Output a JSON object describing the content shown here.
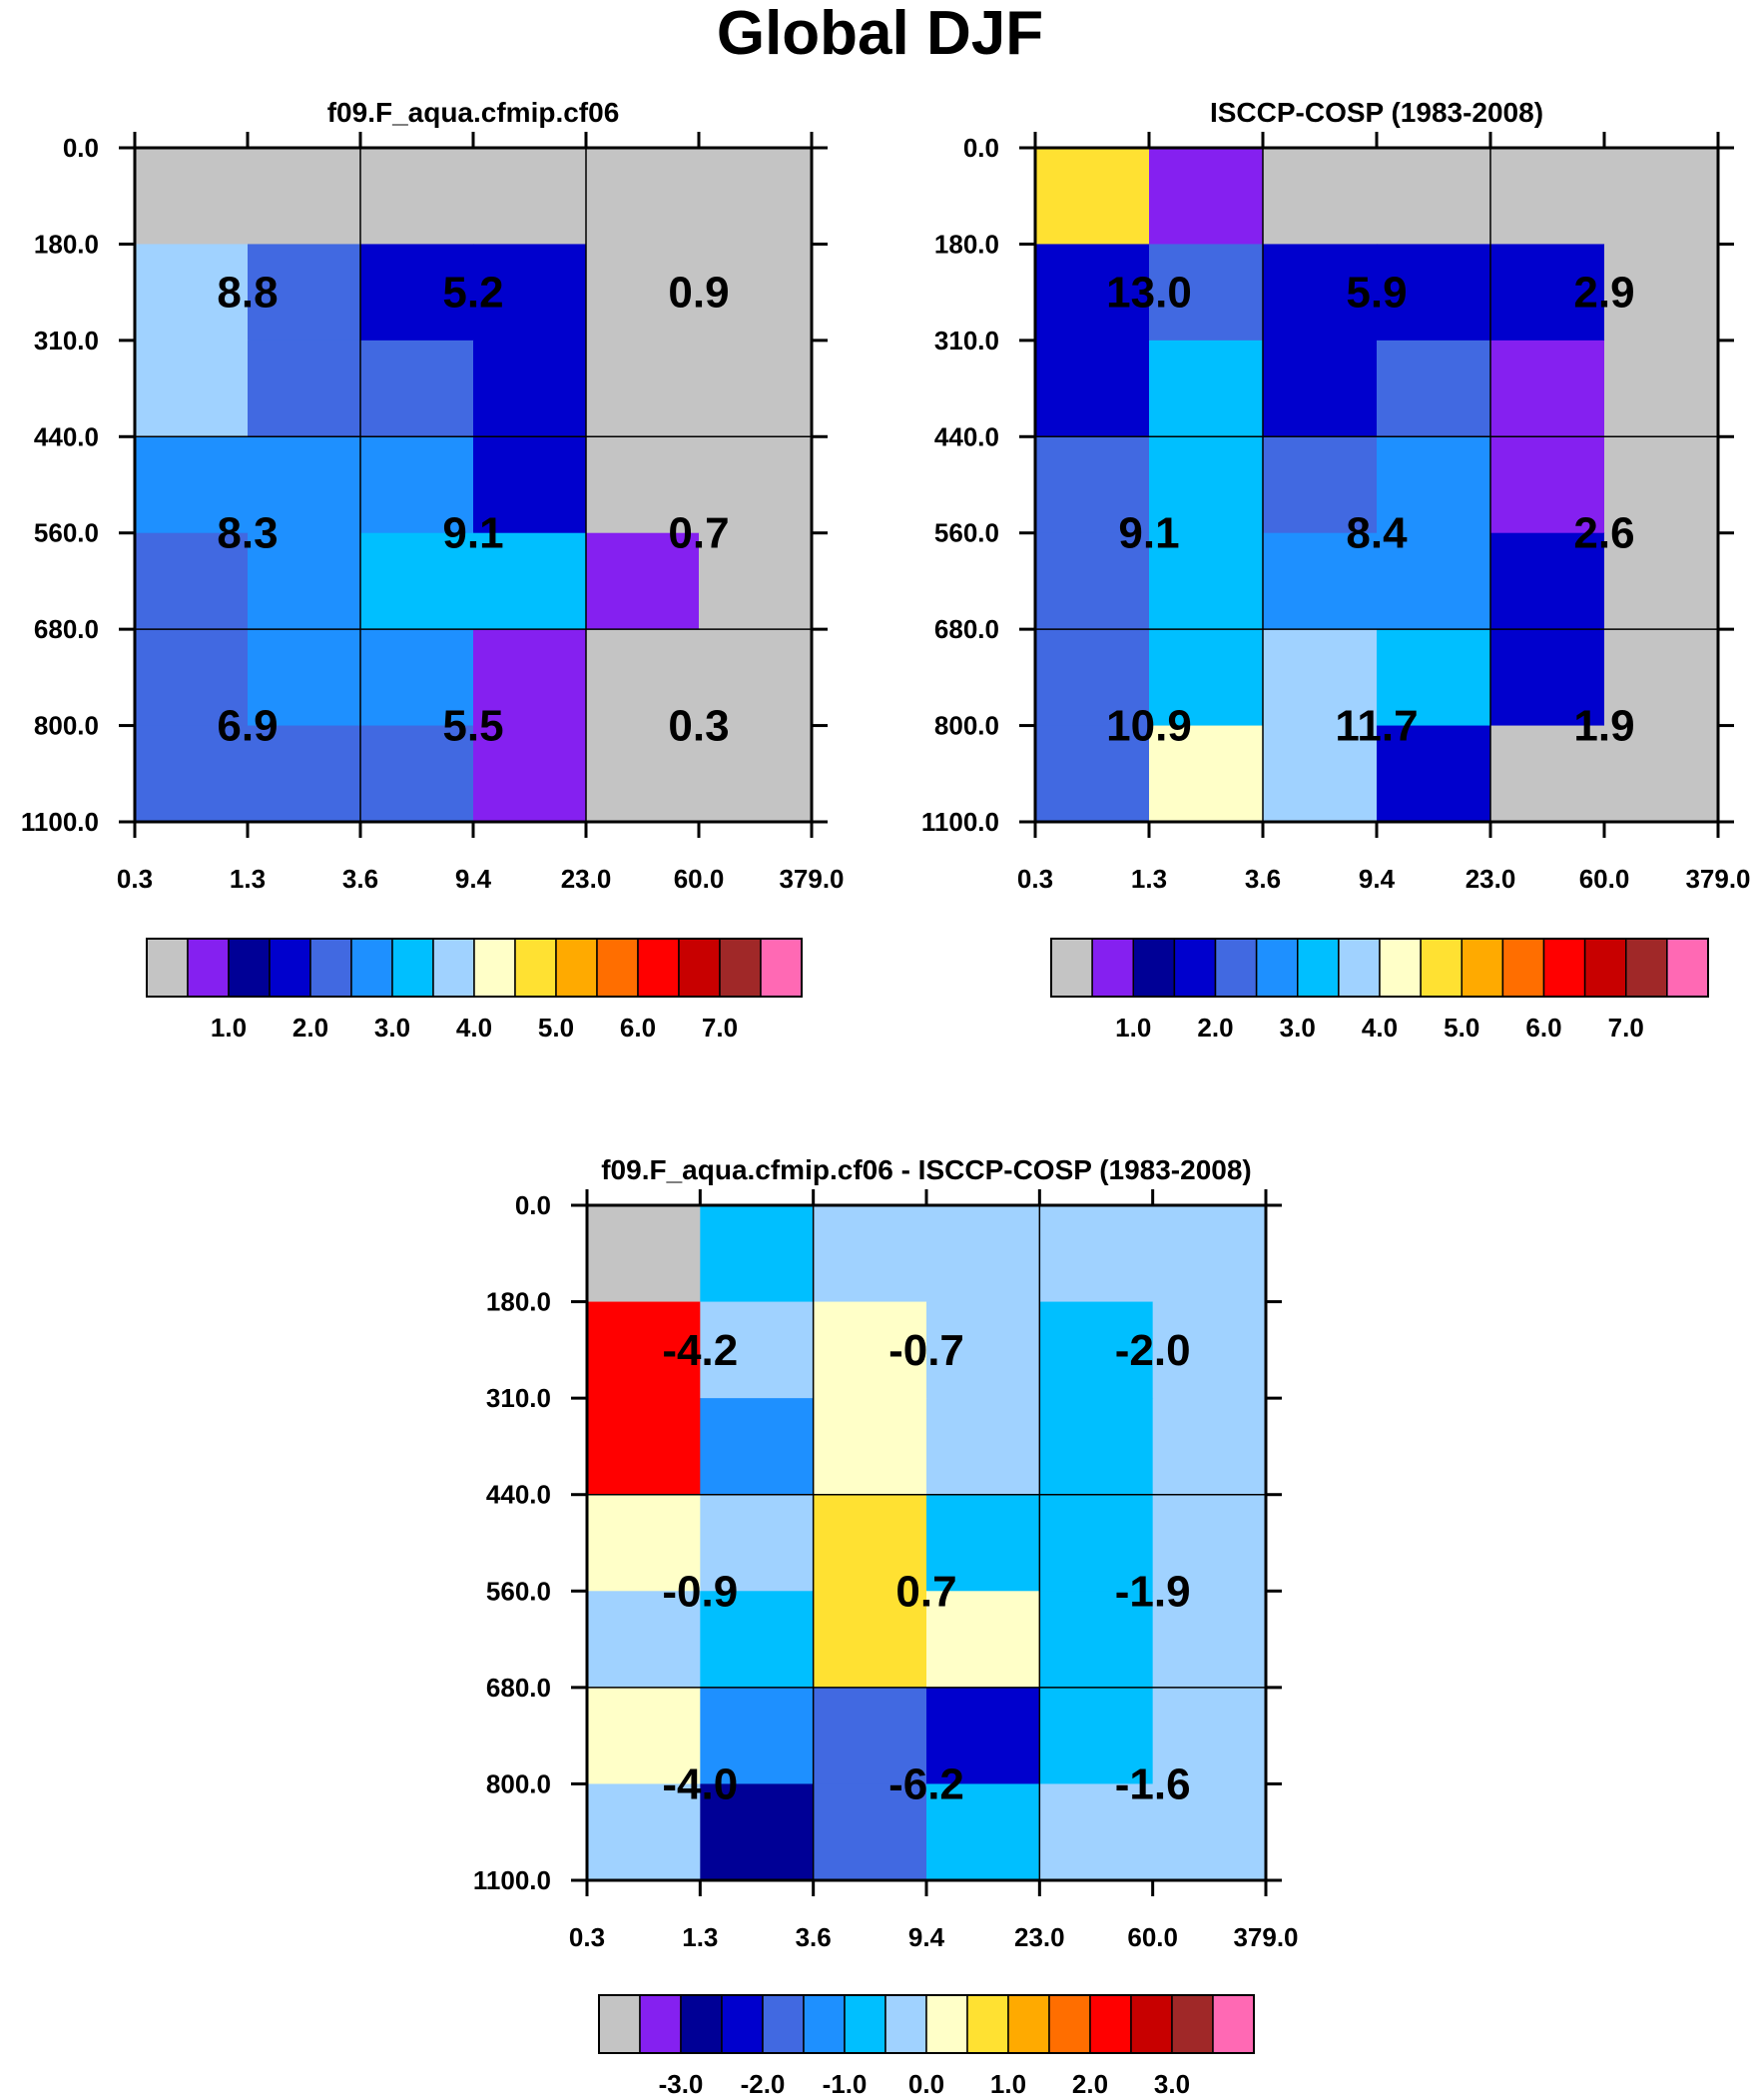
{
  "title": "Global DJF",
  "chart_data": [
    {
      "type": "heatmap",
      "title": "f09.F_aqua.cfmip.cf06",
      "xticks": [
        "0.3",
        "1.3",
        "3.6",
        "9.4",
        "23.0",
        "60.0",
        "379.0"
      ],
      "yticks": [
        "0.0",
        "180.0",
        "310.0",
        "440.0",
        "560.0",
        "680.0",
        "800.0",
        "1100.0"
      ],
      "cells": [
        [
          0,
          0,
          0,
          0,
          0,
          0
        ],
        [
          3.5,
          2,
          1.8,
          1.6,
          0,
          0
        ],
        [
          3.5,
          2,
          2,
          1.6,
          0,
          0
        ],
        [
          2.5,
          2.5,
          2.5,
          1.6,
          0,
          0
        ],
        [
          2,
          2.5,
          3.2,
          3,
          0.6,
          0
        ],
        [
          2,
          2.5,
          2.5,
          0.8,
          0,
          0
        ],
        [
          2,
          2,
          2,
          0.8,
          0,
          0
        ]
      ],
      "labels": [
        [
          "8.8",
          "5.2",
          "0.9"
        ],
        [
          "8.3",
          "9.1",
          "0.7"
        ],
        [
          "6.9",
          "5.5",
          "0.3"
        ]
      ],
      "colorbar": {
        "colors": [
          "#c4c4c4",
          "#8520f0",
          "#000096",
          "#0000cd",
          "#4169e1",
          "#1e90ff",
          "#00bfff",
          "#a0d2ff",
          "#ffffc8",
          "#ffe132",
          "#ffaa00",
          "#ff6e00",
          "#ff0000",
          "#c80000",
          "#a02828",
          "#ff69b4"
        ],
        "labels": [
          "1.0",
          "2.0",
          "3.0",
          "4.0",
          "5.0",
          "6.0",
          "7.0"
        ]
      }
    },
    {
      "type": "heatmap",
      "title": "ISCCP-COSP (1983-2008)",
      "xticks": [
        "0.3",
        "1.3",
        "3.6",
        "9.4",
        "23.0",
        "60.0",
        "379.0"
      ],
      "yticks": [
        "0.0",
        "180.0",
        "310.0",
        "440.0",
        "560.0",
        "680.0",
        "800.0",
        "1100.0"
      ],
      "cells": [
        [
          4.7,
          0.8,
          0,
          0,
          0,
          0
        ],
        [
          1.6,
          2,
          1.6,
          1.6,
          1.6,
          0
        ],
        [
          1.6,
          3.3,
          1.6,
          2,
          0.8,
          0
        ],
        [
          2,
          3,
          2,
          2.5,
          0.8,
          0
        ],
        [
          2,
          3,
          2.5,
          2.5,
          1.6,
          0
        ],
        [
          2,
          3.3,
          3.8,
          3,
          1.6,
          0
        ],
        [
          2,
          4.2,
          3.8,
          1.6,
          0,
          0
        ]
      ],
      "labels": [
        [
          "13.0",
          "5.9",
          "2.9"
        ],
        [
          "9.1",
          "8.4",
          "2.6"
        ],
        [
          "10.9",
          "11.7",
          "1.9"
        ]
      ],
      "colorbar": {
        "colors": [
          "#c4c4c4",
          "#8520f0",
          "#000096",
          "#0000cd",
          "#4169e1",
          "#1e90ff",
          "#00bfff",
          "#a0d2ff",
          "#ffffc8",
          "#ffe132",
          "#ffaa00",
          "#ff6e00",
          "#ff0000",
          "#c80000",
          "#a02828",
          "#ff69b4"
        ],
        "labels": [
          "1.0",
          "2.0",
          "3.0",
          "4.0",
          "5.0",
          "6.0",
          "7.0"
        ]
      }
    },
    {
      "type": "heatmap",
      "title": "f09.F_aqua.cfmip.cf06 - ISCCP-COSP (1983-2008)",
      "xticks": [
        "0.3",
        "1.3",
        "3.6",
        "9.4",
        "23.0",
        "60.0",
        "379.0"
      ],
      "yticks": [
        "0.0",
        "180.0",
        "310.0",
        "440.0",
        "560.0",
        "680.0",
        "800.0",
        "1100.0"
      ],
      "cells": [
        [
          -4.8,
          -0.8,
          -0.2,
          -0.2,
          -0.2,
          -0.2
        ],
        [
          2.2,
          -0.2,
          0.2,
          -0.2,
          -0.8,
          -0.2
        ],
        [
          2.2,
          -1.2,
          0.2,
          -0.2,
          -0.8,
          -0.2
        ],
        [
          0.2,
          -0.2,
          0.7,
          -0.8,
          -0.8,
          -0.2
        ],
        [
          -0.2,
          -0.8,
          0.7,
          0.2,
          -0.8,
          -0.2
        ],
        [
          0.2,
          -1.2,
          -1.8,
          -2.2,
          -0.8,
          -0.2
        ],
        [
          -0.2,
          -2.8,
          -1.8,
          -0.8,
          -0.2,
          -0.2
        ]
      ],
      "labels": [
        [
          "-4.2",
          "-0.7",
          "-2.0"
        ],
        [
          "-0.9",
          "0.7",
          "-1.9"
        ],
        [
          "-4.0",
          "-6.2",
          "-1.6"
        ]
      ],
      "colorbar": {
        "colors": [
          "#c4c4c4",
          "#8520f0",
          "#000096",
          "#0000cd",
          "#4169e1",
          "#1e90ff",
          "#00bfff",
          "#a0d2ff",
          "#ffffc8",
          "#ffe132",
          "#ffaa00",
          "#ff6e00",
          "#ff0000",
          "#c80000",
          "#a02828",
          "#ff69b4"
        ],
        "labels": [
          "-3.0",
          "-2.0",
          "-1.0",
          "0.0",
          "1.0",
          "2.0",
          "3.0"
        ]
      }
    }
  ]
}
